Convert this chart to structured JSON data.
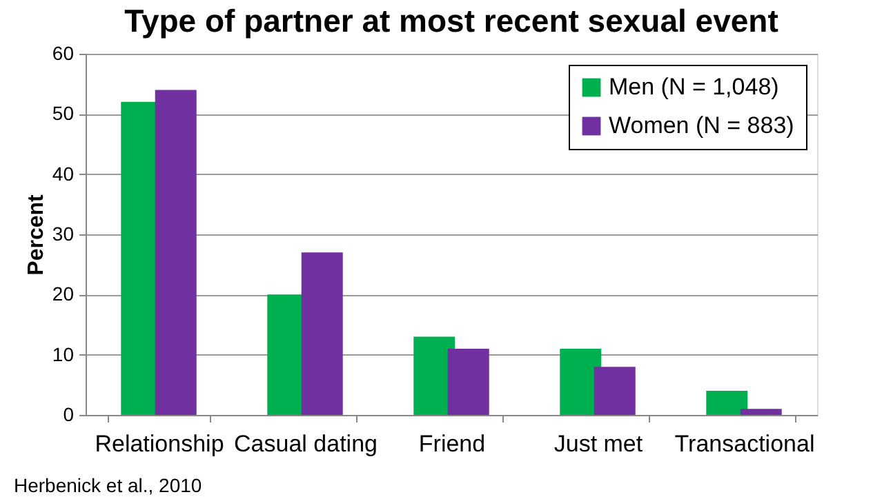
{
  "chart_data": {
    "type": "bar",
    "title": "Type of partner at most recent sexual event",
    "ylabel": "Percent",
    "categories": [
      "Relationship",
      "Casual dating",
      "Friend",
      "Just met",
      "Transactional"
    ],
    "series": [
      {
        "name": "Men (N = 1,048)",
        "color": "#00b050",
        "values": [
          52,
          20,
          13,
          11,
          4
        ]
      },
      {
        "name": "Women (N = 883)",
        "color": "#7030a0",
        "values": [
          54,
          27,
          11,
          8,
          1
        ]
      }
    ],
    "ylim": [
      0,
      60
    ],
    "yticks": [
      0,
      10,
      20,
      30,
      40,
      50,
      60
    ],
    "grid": "y",
    "legend": "top right",
    "annotations": [
      "Herbenick et al., 2010"
    ]
  }
}
